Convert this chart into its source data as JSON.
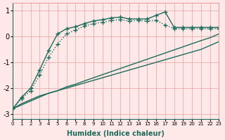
{
  "bg_color": "#ffe8e8",
  "grid_color": "#e8a0a0",
  "line_color": "#1a6b5a",
  "xlabel": "Humidex (Indice chaleur)",
  "xlim": [
    0,
    23
  ],
  "ylim": [
    -3.2,
    1.3
  ],
  "yticks": [
    -3,
    -2,
    -1,
    0,
    1
  ],
  "xticks": [
    0,
    1,
    2,
    3,
    4,
    5,
    6,
    7,
    8,
    9,
    10,
    11,
    12,
    13,
    14,
    15,
    16,
    17,
    18,
    19,
    20,
    21,
    22,
    23
  ],
  "line1_x": [
    0,
    1,
    2,
    3,
    4,
    5,
    6,
    7,
    8,
    9,
    10,
    11,
    12,
    13,
    14,
    15,
    16,
    17,
    18,
    19,
    20,
    21,
    22,
    23
  ],
  "line1_y": [
    -2.8,
    -2.6,
    -2.45,
    -2.3,
    -2.2,
    -2.1,
    -2.0,
    -1.9,
    -1.8,
    -1.7,
    -1.6,
    -1.5,
    -1.4,
    -1.3,
    -1.2,
    -1.1,
    -1.0,
    -0.9,
    -0.8,
    -0.7,
    -0.6,
    -0.5,
    -0.35,
    -0.2
  ],
  "line2_x": [
    0,
    1,
    2,
    3,
    4,
    5,
    6,
    7,
    8,
    9,
    10,
    11,
    12,
    13,
    14,
    15,
    16,
    17,
    18,
    19,
    20,
    21,
    22,
    23
  ],
  "line2_y": [
    -2.8,
    -2.65,
    -2.5,
    -2.35,
    -2.2,
    -2.1,
    -1.95,
    -1.85,
    -1.72,
    -1.6,
    -1.48,
    -1.36,
    -1.24,
    -1.12,
    -1.0,
    -0.88,
    -0.76,
    -0.64,
    -0.52,
    -0.4,
    -0.28,
    -0.16,
    -0.05,
    0.1
  ],
  "line3_x": [
    0,
    1,
    2,
    3,
    4,
    5,
    6,
    7,
    8,
    9,
    10,
    11,
    12,
    13,
    14,
    15,
    16,
    17,
    18,
    19,
    20,
    21,
    22,
    23
  ],
  "line3_y": [
    -2.8,
    -2.4,
    -2.1,
    -1.5,
    -0.8,
    -0.3,
    0.1,
    0.25,
    0.4,
    0.5,
    0.55,
    0.62,
    0.65,
    0.6,
    0.62,
    0.6,
    0.62,
    0.45,
    0.3,
    0.3,
    0.3,
    0.3,
    0.3,
    0.3
  ],
  "line4_x": [
    0,
    1,
    2,
    3,
    4,
    5,
    6,
    7,
    8,
    9,
    10,
    11,
    12,
    13,
    14,
    15,
    16,
    17,
    18,
    19,
    20,
    21,
    22,
    23
  ],
  "line4_y": [
    -2.8,
    -2.35,
    -2.0,
    -1.3,
    -0.55,
    0.1,
    0.3,
    0.38,
    0.5,
    0.6,
    0.65,
    0.72,
    0.75,
    0.68,
    0.68,
    0.68,
    0.82,
    0.95,
    0.35,
    0.35,
    0.35,
    0.35,
    0.35,
    0.35
  ]
}
